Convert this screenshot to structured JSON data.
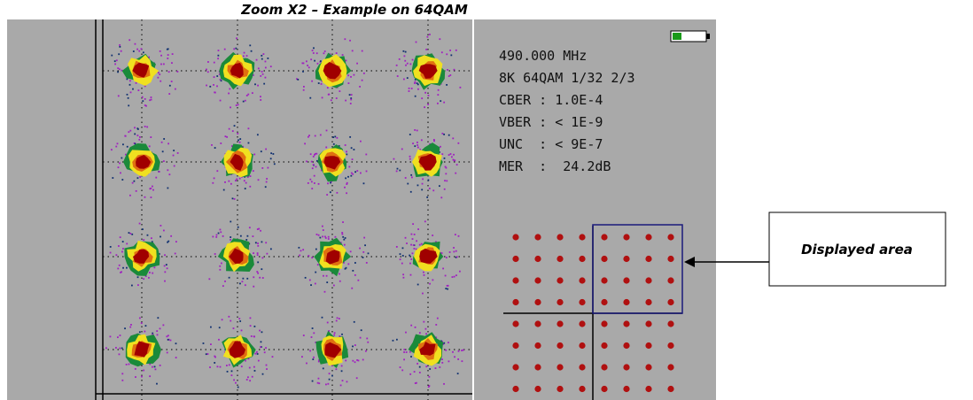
{
  "title": "Zoom X2 – Example on 64QAM",
  "status": {
    "lines": [
      "490.000 MHz",
      "8K 64QAM 1/32 2/3",
      "CBER : 1.0E-4",
      "VBER : < 1E-9",
      "UNC  : < 9E-7",
      "MER  :  24.2dB"
    ]
  },
  "callout": {
    "label": "Displayed area"
  }
}
